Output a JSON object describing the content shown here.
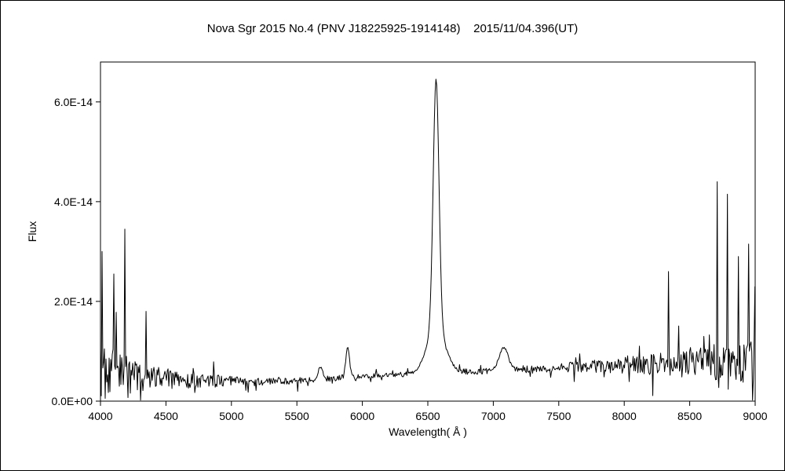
{
  "chart_data": {
    "type": "line",
    "title": "Nova Sgr 2015 No.4 (PNV J18225925-1914148)    2015/11/04.396(UT)",
    "xlabel": "Wavelength( Å )",
    "ylabel": "Flux",
    "xlim": [
      4000,
      9000
    ],
    "ylim": [
      0,
      6.8e-14
    ],
    "xticks": [
      4000,
      4500,
      5000,
      5500,
      6000,
      6500,
      7000,
      7500,
      8000,
      8500,
      9000
    ],
    "yticks": [
      {
        "value": 0,
        "label": "0.0E+00"
      },
      {
        "value": 2e-14,
        "label": "2.0E-14"
      },
      {
        "value": 4e-14,
        "label": "4.0E-14"
      },
      {
        "value": 6e-14,
        "label": "6.0E-14"
      }
    ],
    "grid": false,
    "legend": null,
    "line_color": "#000000",
    "background_color": "#ffffff",
    "sampling_step_angstrom": 6,
    "random_seed": 20151104,
    "continuum": [
      [
        4000,
        6e-15
      ],
      [
        4300,
        5e-15
      ],
      [
        4700,
        4.2e-15
      ],
      [
        5200,
        3.8e-15
      ],
      [
        5600,
        4.2e-15
      ],
      [
        5900,
        4.8e-15
      ],
      [
        6200,
        5.2e-15
      ],
      [
        6900,
        6e-15
      ],
      [
        7300,
        6.5e-15
      ],
      [
        7800,
        7e-15
      ],
      [
        8300,
        7.5e-15
      ],
      [
        9000,
        8e-15
      ]
    ],
    "noise_envelope": [
      [
        4000,
        1.4e-14
      ],
      [
        4150,
        1.1e-14
      ],
      [
        4350,
        6e-15
      ],
      [
        4700,
        3.5e-15
      ],
      [
        5100,
        2e-15
      ],
      [
        5600,
        1.3e-15
      ],
      [
        6100,
        1.1e-15
      ],
      [
        6700,
        1.2e-15
      ],
      [
        7200,
        1.6e-15
      ],
      [
        7700,
        2.5e-15
      ],
      [
        8100,
        4e-15
      ],
      [
        8500,
        7e-15
      ],
      [
        9000,
        1e-14
      ]
    ],
    "emission_lines": [
      {
        "name": "main-emission-peak-6560",
        "center": 6563,
        "peak_flux": 6.4e-14,
        "amplitude": 5e-14,
        "sigma": 22,
        "wing_amplitude": 9e-15,
        "wing_sigma": 70
      },
      {
        "name": "feature-5890",
        "center": 5888,
        "amplitude": 6e-15,
        "sigma": 14
      },
      {
        "name": "feature-5680",
        "center": 5680,
        "amplitude": 2.5e-15,
        "sigma": 18
      },
      {
        "name": "feature-7080",
        "center": 7080,
        "amplitude": 4.5e-15,
        "sigma": 35
      }
    ],
    "noise_spikes": [
      {
        "x": 4010,
        "y": 3e-14
      },
      {
        "x": 4100,
        "y": 2.55e-14
      },
      {
        "x": 4185,
        "y": 3.45e-14
      },
      {
        "x": 4350,
        "y": 1.8e-14
      },
      {
        "x": 8340,
        "y": 2.6e-14
      },
      {
        "x": 8710,
        "y": 4.4e-14
      },
      {
        "x": 8785,
        "y": 4.15e-14
      },
      {
        "x": 8870,
        "y": 2.9e-14
      },
      {
        "x": 8950,
        "y": 3.15e-14
      },
      {
        "x": 8995,
        "y": 2.3e-14
      }
    ]
  }
}
